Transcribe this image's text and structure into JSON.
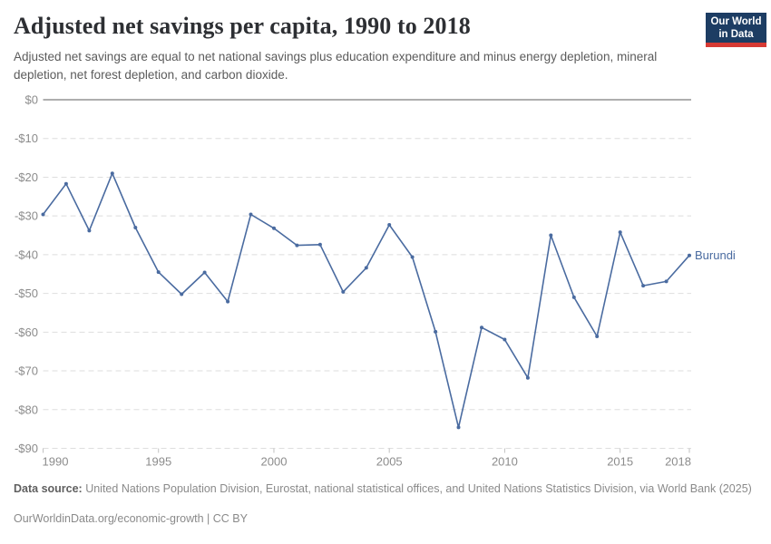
{
  "header": {
    "title": "Adjusted net savings per capita, 1990 to 2018",
    "subtitle": "Adjusted net savings are equal to net national savings plus education expenditure and minus energy depletion, mineral depletion, net forest depletion, and carbon dioxide.",
    "logo": {
      "line1": "Our World",
      "line2": "in Data",
      "bg_color": "#1d3d63",
      "accent_color": "#d73a34"
    }
  },
  "chart_data": {
    "type": "line",
    "title": "Adjusted net savings per capita, 1990 to 2018",
    "xlabel": "",
    "ylabel": "",
    "xlim": [
      1990,
      2018
    ],
    "ylim": [
      -90,
      0
    ],
    "grid": "horizontal-dashed",
    "legend_position": "end-of-line-label",
    "x_ticks": [
      1990,
      1995,
      2000,
      2005,
      2010,
      2015,
      2018
    ],
    "y_ticks": [
      0,
      -10,
      -20,
      -30,
      -40,
      -50,
      -60,
      -70,
      -80,
      -90
    ],
    "y_tick_labels": [
      "$0",
      "-$10",
      "-$20",
      "-$30",
      "-$40",
      "-$50",
      "-$60",
      "-$70",
      "-$80",
      "-$90"
    ],
    "x": [
      1990,
      1991,
      1992,
      1993,
      1994,
      1995,
      1996,
      1997,
      1998,
      1999,
      2000,
      2001,
      2002,
      2003,
      2004,
      2005,
      2006,
      2007,
      2008,
      2009,
      2010,
      2011,
      2012,
      2013,
      2014,
      2015,
      2016,
      2017,
      2018
    ],
    "series": [
      {
        "name": "Burundi",
        "color": "#4a6ba0",
        "values": [
          -29.6,
          -21.7,
          -33.8,
          -19.0,
          -33.0,
          -44.5,
          -50.2,
          -44.6,
          -52.1,
          -29.6,
          -33.2,
          -37.6,
          -37.4,
          -49.6,
          -43.4,
          -32.3,
          -40.6,
          -59.9,
          -84.6,
          -58.8,
          -61.9,
          -71.8,
          -35.0,
          -51.0,
          -61.1,
          -34.2,
          -48.0,
          -46.9,
          -40.2
        ]
      }
    ],
    "entity_label": "Burundi",
    "colors": {
      "zero_line": "#a3a3a3",
      "gridline": "#dedede",
      "tick_label": "#8c8c8c",
      "tick_mark": "#c2c2c2"
    }
  },
  "footer": {
    "source_label": "Data source:",
    "source_text": " United Nations Population Division, Eurostat, national statistical offices, and United Nations Statistics Division, via World Bank (2025)",
    "link_line": "OurWorldinData.org/economic-growth | CC BY"
  }
}
